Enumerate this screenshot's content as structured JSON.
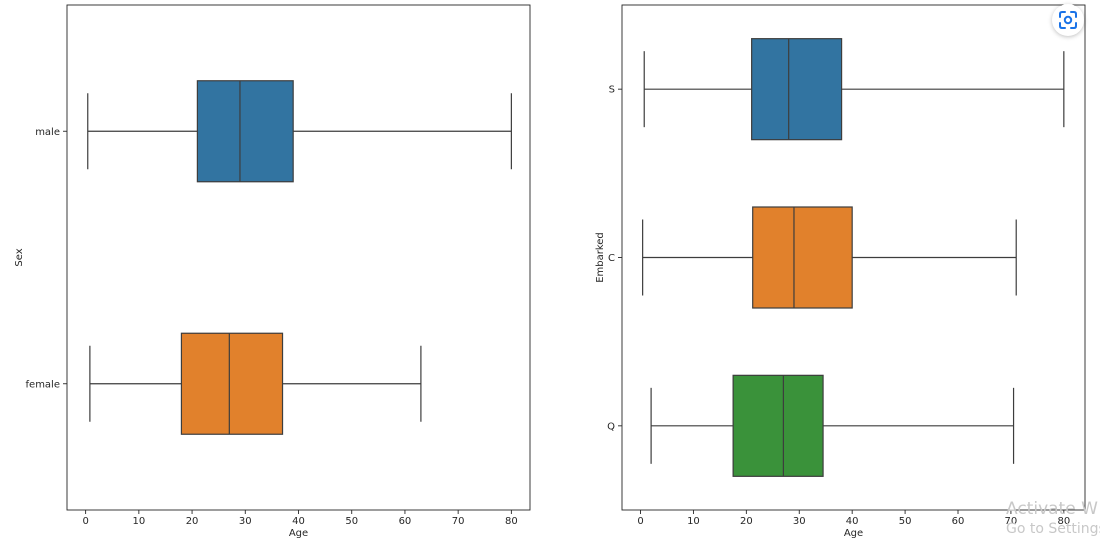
{
  "chart_data": [
    {
      "type": "box",
      "orientation": "horizontal",
      "xlabel": "Age",
      "ylabel": "Sex",
      "xlim": [
        -3.5,
        83.5
      ],
      "x_ticks": [
        0,
        10,
        20,
        30,
        40,
        50,
        60,
        70,
        80
      ],
      "categories": [
        "male",
        "female"
      ],
      "boxes": [
        {
          "name": "male",
          "whisker_low": 0.4,
          "q1": 21,
          "median": 29,
          "q3": 39,
          "whisker_high": 80,
          "color": "#3274a1"
        },
        {
          "name": "female",
          "whisker_low": 0.8,
          "q1": 18,
          "median": 27,
          "q3": 37,
          "whisker_high": 63,
          "color": "#e1812c"
        }
      ],
      "grid": false
    },
    {
      "type": "box",
      "orientation": "horizontal",
      "xlabel": "Age",
      "ylabel": "Embarked",
      "xlim": [
        -3.5,
        84
      ],
      "x_ticks": [
        0,
        10,
        20,
        30,
        40,
        50,
        60,
        70,
        80
      ],
      "categories": [
        "S",
        "C",
        "Q"
      ],
      "boxes": [
        {
          "name": "S",
          "whisker_low": 0.7,
          "q1": 21,
          "median": 28,
          "q3": 38,
          "whisker_high": 80,
          "color": "#3274a1"
        },
        {
          "name": "C",
          "whisker_low": 0.4,
          "q1": 21.2,
          "median": 29,
          "q3": 40,
          "whisker_high": 71,
          "color": "#e1812c"
        },
        {
          "name": "Q",
          "whisker_low": 2,
          "q1": 17.5,
          "median": 27,
          "q3": 34.5,
          "whisker_high": 70.5,
          "color": "#3a923a"
        }
      ],
      "grid": false
    }
  ],
  "watermark": {
    "line1": "Activate W",
    "line2": "Go to Settings"
  },
  "lens_button": {
    "icon": "google-lens-icon",
    "color": "#1a73e8"
  }
}
